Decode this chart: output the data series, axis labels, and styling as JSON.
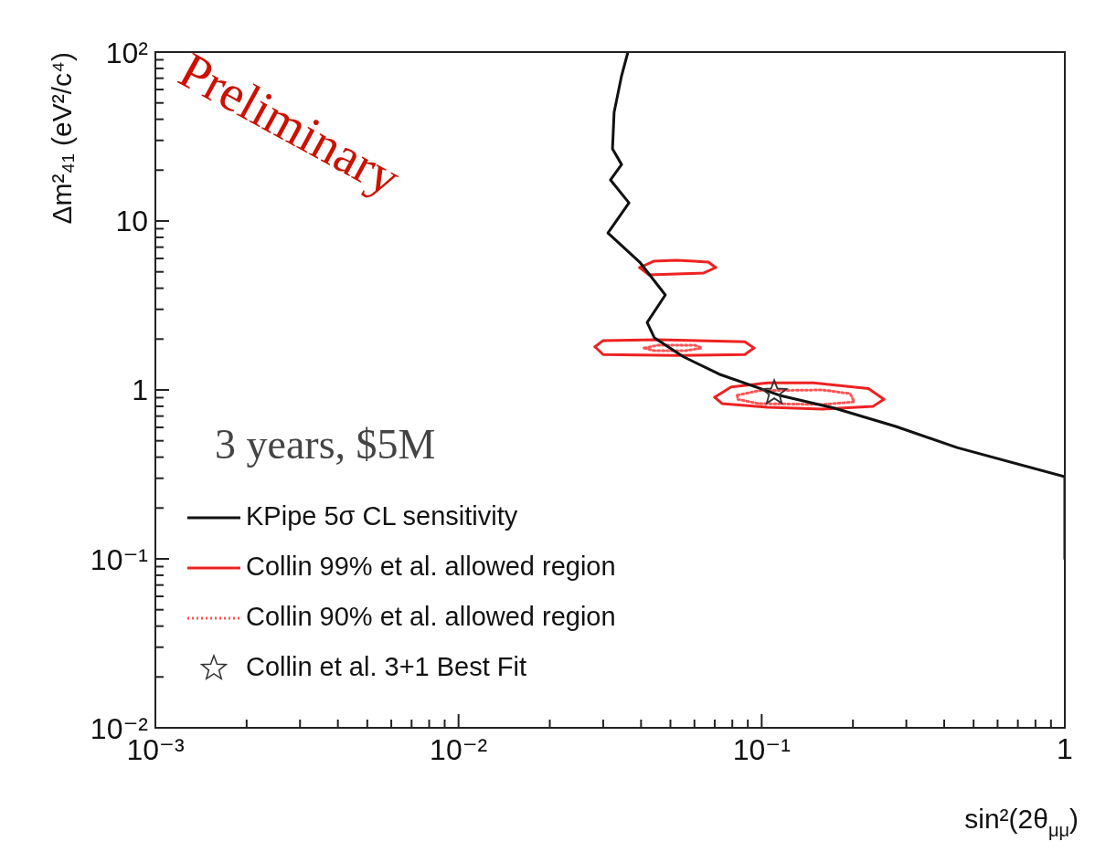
{
  "chart_data": {
    "type": "line",
    "xlabel": "sin²(2θ$_{μμ}$)",
    "ylabel": "Δm²₄₁ (eV²/c⁴)",
    "annotations": [
      "Preliminary",
      "3 years, $5M"
    ],
    "log": "xy",
    "xlim": [
      0.001,
      1
    ],
    "ylim": [
      0.01,
      100
    ],
    "xticks": [
      {
        "value": 0.001,
        "label": "10⁻³"
      },
      {
        "value": 0.002,
        "label": null
      },
      {
        "value": 0.003,
        "label": null
      },
      {
        "value": 0.004,
        "label": null
      },
      {
        "value": 0.005,
        "label": null
      },
      {
        "value": 0.006,
        "label": null
      },
      {
        "value": 0.007,
        "label": null
      },
      {
        "value": 0.008,
        "label": null
      },
      {
        "value": 0.009,
        "label": null
      },
      {
        "value": 0.01,
        "label": "10⁻²"
      },
      {
        "value": 0.02,
        "label": null
      },
      {
        "value": 0.03,
        "label": null
      },
      {
        "value": 0.04,
        "label": null
      },
      {
        "value": 0.05,
        "label": null
      },
      {
        "value": 0.06,
        "label": null
      },
      {
        "value": 0.07,
        "label": null
      },
      {
        "value": 0.08,
        "label": null
      },
      {
        "value": 0.09,
        "label": null
      },
      {
        "value": 0.1,
        "label": "10⁻¹"
      },
      {
        "value": 0.2,
        "label": null
      },
      {
        "value": 0.3,
        "label": null
      },
      {
        "value": 0.4,
        "label": null
      },
      {
        "value": 0.5,
        "label": null
      },
      {
        "value": 0.6,
        "label": null
      },
      {
        "value": 0.7,
        "label": null
      },
      {
        "value": 0.8,
        "label": null
      },
      {
        "value": 0.9,
        "label": null
      },
      1
    ],
    "yticks": [
      {
        "value": 0.01,
        "label": "10⁻²"
      },
      {
        "value": 0.02,
        "label": null
      },
      {
        "value": 0.03,
        "label": null
      },
      {
        "value": 0.04,
        "label": null
      },
      {
        "value": 0.05,
        "label": null
      },
      {
        "value": 0.06,
        "label": null
      },
      {
        "value": 0.07,
        "label": null
      },
      {
        "value": 0.08,
        "label": null
      },
      {
        "value": 0.09,
        "label": null
      },
      {
        "value": 0.1,
        "label": "10⁻¹"
      },
      {
        "value": 0.2,
        "label": null
      },
      {
        "value": 0.3,
        "label": null
      },
      {
        "value": 0.4,
        "label": null
      },
      {
        "value": 0.5,
        "label": null
      },
      {
        "value": 0.6,
        "label": null
      },
      {
        "value": 0.7,
        "label": null
      },
      {
        "value": 0.8,
        "label": null
      },
      {
        "value": 0.9,
        "label": null
      },
      1,
      {
        "value": 2,
        "label": null
      },
      {
        "value": 3,
        "label": null
      },
      {
        "value": 4,
        "label": null
      },
      {
        "value": 5,
        "label": null
      },
      {
        "value": 6,
        "label": null
      },
      {
        "value": 7,
        "label": null
      },
      {
        "value": 8,
        "label": null
      },
      {
        "value": 9,
        "label": null
      },
      10,
      {
        "value": 20,
        "label": null
      },
      {
        "value": 30,
        "label": null
      },
      {
        "value": 40,
        "label": null
      },
      {
        "value": 50,
        "label": null
      },
      {
        "value": 60,
        "label": null
      },
      {
        "value": 70,
        "label": null
      },
      {
        "value": 80,
        "label": null
      },
      {
        "value": 90,
        "label": null
      },
      {
        "value": 100,
        "label": "10²"
      }
    ],
    "legend": "bottom left",
    "series": [
      {
        "name": "KPipe 5σ CL sensitivity",
        "type": "line",
        "color": "#111111",
        "line_style": "solid",
        "x": [
          0.0362,
          0.0345,
          0.0326,
          0.0322,
          0.0345,
          0.0317,
          0.0365,
          0.0311,
          0.0396,
          0.0481,
          0.0419,
          0.0443,
          0.0549,
          0.0724,
          0.1146,
          0.174,
          0.277,
          0.441,
          1,
          1
        ],
        "values": [
          100,
          72.3,
          44.0,
          26.7,
          21.6,
          17.5,
          12.8,
          8.5,
          5.71,
          3.65,
          2.51,
          2.03,
          1.58,
          1.24,
          0.929,
          0.78,
          0.608,
          0.456,
          0.306,
          0.1
        ]
      },
      {
        "name": "Collin 99% et al. allowed region",
        "type": "line",
        "color": "#ee2222",
        "line_style": "solid",
        "x": [
          0.0396,
          0.044,
          0.0523,
          0.0667,
          0.0705
        ],
        "values": [
          5.3,
          5.78,
          5.86,
          5.71,
          5.3
        ]
      },
      {
        "type": "line",
        "color": "#ee2222",
        "line_style": "solid",
        "x": [
          0.0396,
          0.0425,
          0.0523,
          0.0644,
          0.0705
        ],
        "values": [
          5.3,
          4.8,
          4.86,
          4.92,
          5.3
        ]
      },
      {
        "type": "line",
        "color": "#ee2222",
        "line_style": "solid",
        "x": [
          0.0282,
          0.03,
          0.0455,
          0.088,
          0.0943
        ],
        "values": [
          1.8,
          1.96,
          1.98,
          1.93,
          1.77
        ]
      },
      {
        "type": "line",
        "color": "#ee2222",
        "line_style": "solid",
        "x": [
          0.0282,
          0.03,
          0.0523,
          0.088,
          0.0943
        ],
        "values": [
          1.8,
          1.62,
          1.6,
          1.62,
          1.77
        ]
      },
      {
        "type": "line",
        "color": "#ee2222",
        "line_style": "solid",
        "x": [
          0.07,
          0.0793,
          0.1047,
          0.148,
          0.225,
          0.253
        ],
        "values": [
          0.905,
          1.04,
          1.1,
          1.1,
          1.02,
          0.88
        ]
      },
      {
        "type": "line",
        "color": "#ee2222",
        "line_style": "solid",
        "x": [
          0.07,
          0.074,
          0.1047,
          0.159,
          0.233,
          0.253
        ],
        "values": [
          0.905,
          0.83,
          0.79,
          0.77,
          0.8,
          0.88
        ]
      },
      {
        "name": "Collin 90% et al. allowed region",
        "type": "line",
        "color": "#ff5555",
        "line_style": "dotted",
        "x": [
          0.041,
          0.0455,
          0.0601,
          0.0635
        ],
        "values": [
          1.77,
          1.84,
          1.84,
          1.77
        ]
      },
      {
        "type": "line",
        "color": "#ff5555",
        "line_style": "dotted",
        "x": [
          0.041,
          0.044,
          0.0561,
          0.0635
        ],
        "values": [
          1.77,
          1.71,
          1.71,
          1.77
        ]
      },
      {
        "type": "line",
        "color": "#ff5555",
        "line_style": "dotted",
        "x": [
          0.0832,
          0.0977,
          0.159,
          0.196,
          0.202
        ],
        "values": [
          0.93,
          0.99,
          1.0,
          0.95,
          0.85
        ]
      },
      {
        "type": "line",
        "color": "#ff5555",
        "line_style": "dotted",
        "x": [
          0.0832,
          0.0832,
          0.0977,
          0.159,
          0.202
        ],
        "values": [
          0.93,
          0.88,
          0.83,
          0.82,
          0.85
        ]
      },
      {
        "name": "Collin et al. 3+1 Best Fit",
        "type": "scatter",
        "color": "#333333",
        "marker": "star",
        "x": [
          0.11
        ],
        "values": [
          0.96
        ]
      }
    ]
  }
}
